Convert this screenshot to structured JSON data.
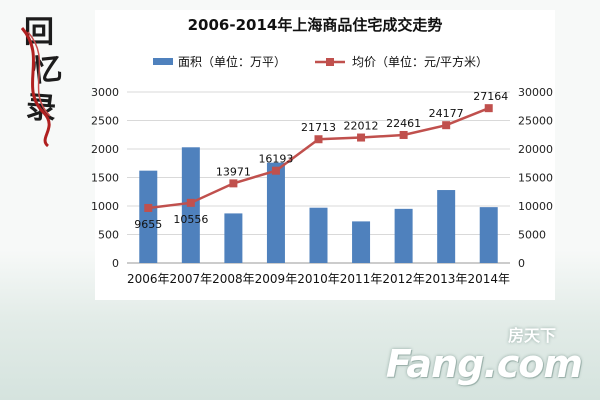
{
  "logo": {
    "chars": [
      "回",
      "忆",
      "录"
    ]
  },
  "watermark": {
    "small": "房天下",
    "main": "Fang.com"
  },
  "colors": {
    "bar": "#4f81bd",
    "line": "#c0504d",
    "grid": "#d9d9d9"
  },
  "chart_data": {
    "type": "bar+line",
    "title": "2006-2014年上海商品住宅成交走势",
    "categories": [
      "2006年",
      "2007年",
      "2008年",
      "2009年",
      "2010年",
      "2011年",
      "2012年",
      "2013年",
      "2014年"
    ],
    "series": [
      {
        "name": "面积（单位：万平）",
        "type": "bar",
        "axis": "left",
        "values": [
          1620,
          2030,
          870,
          1760,
          970,
          730,
          950,
          1280,
          980
        ]
      },
      {
        "name": "均价（单位：元/平方米）",
        "type": "line",
        "axis": "right",
        "values": [
          9655,
          10556,
          13971,
          16193,
          21713,
          22012,
          22461,
          24177,
          27164
        ]
      }
    ],
    "y_left": {
      "min": 0,
      "max": 3000,
      "ticks": [
        0,
        500,
        1000,
        1500,
        2000,
        2500,
        3000
      ]
    },
    "y_right": {
      "min": 0,
      "max": 30000,
      "ticks": [
        0,
        5000,
        10000,
        15000,
        20000,
        25000,
        30000
      ]
    },
    "legend": "top",
    "grid": true
  }
}
